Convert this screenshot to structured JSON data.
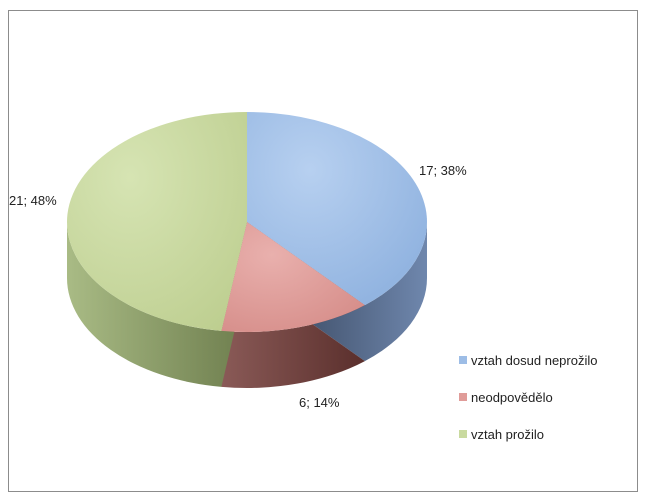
{
  "chart_data": {
    "type": "pie",
    "style": "3d",
    "title": "",
    "slices": [
      {
        "label": "vztah dosud neprožilo",
        "value": 17,
        "percent": 38,
        "data_label": "17; 38%",
        "color": "#9DBDE6",
        "side_color": "#5a6f8c"
      },
      {
        "label": "neodpovědělo",
        "value": 6,
        "percent": 14,
        "data_label": "6; 14%",
        "color": "#E09C99",
        "side_color": "#7a4440"
      },
      {
        "label": "vztah prožilo",
        "value": 21,
        "percent": 48,
        "data_label": "21; 48%",
        "color": "#C9DA9F",
        "side_color": "#8fa26a"
      }
    ],
    "legend": [
      "vztah dosud neprožilo",
      "neodpovědělo",
      "vztah prožilo"
    ],
    "legend_position": "right"
  }
}
